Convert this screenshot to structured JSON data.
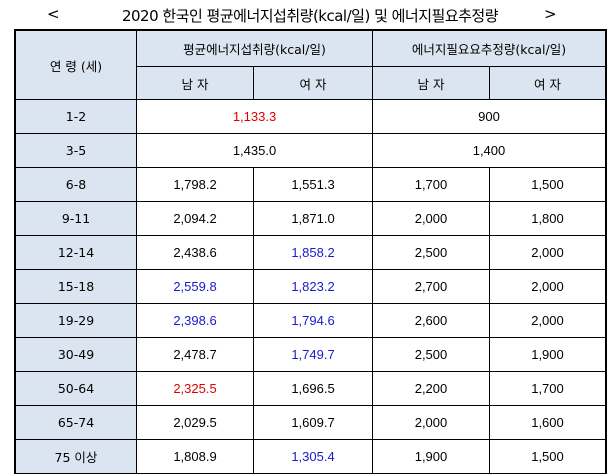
{
  "title": {
    "left_bracket": "<",
    "text": "2020 한국인 평균에너지섭취량(kcal/일) 및 에너지필요추정량",
    "right_bracket": ">"
  },
  "header": {
    "age": "연 령 (세)",
    "intake": "평균에너지섭취량(kcal/일)",
    "requirement": "에너지필요요추정량(kcal/일)",
    "male": "남 자",
    "female": "여 자"
  },
  "rows": [
    {
      "age": "1-2",
      "merged": true,
      "intake": "1,133.3",
      "intake_color": "red",
      "req": "900"
    },
    {
      "age": "3-5",
      "merged": true,
      "intake": "1,435.0",
      "intake_color": "black",
      "req": "1,400"
    },
    {
      "age": "6-8",
      "merged": false,
      "m_intake": "1,798.2",
      "m_color": "black",
      "f_intake": "1,551.3",
      "f_color": "black",
      "m_req": "1,700",
      "f_req": "1,500"
    },
    {
      "age": "9-11",
      "merged": false,
      "m_intake": "2,094.2",
      "m_color": "black",
      "f_intake": "1,871.0",
      "f_color": "black",
      "m_req": "2,000",
      "f_req": "1,800"
    },
    {
      "age": "12-14",
      "merged": false,
      "m_intake": "2,438.6",
      "m_color": "black",
      "f_intake": "1,858.2",
      "f_color": "blue",
      "m_req": "2,500",
      "f_req": "2,000"
    },
    {
      "age": "15-18",
      "merged": false,
      "m_intake": "2,559.8",
      "m_color": "blue",
      "f_intake": "1,823.2",
      "f_color": "blue",
      "m_req": "2,700",
      "f_req": "2,000"
    },
    {
      "age": "19-29",
      "merged": false,
      "m_intake": "2,398.6",
      "m_color": "blue",
      "f_intake": "1,794.6",
      "f_color": "blue",
      "m_req": "2,600",
      "f_req": "2,000"
    },
    {
      "age": "30-49",
      "merged": false,
      "m_intake": "2,478.7",
      "m_color": "black",
      "f_intake": "1,749.7",
      "f_color": "blue",
      "m_req": "2,500",
      "f_req": "1,900"
    },
    {
      "age": "50-64",
      "merged": false,
      "m_intake": "2,325.5",
      "m_color": "red",
      "f_intake": "1,696.5",
      "f_color": "black",
      "m_req": "2,200",
      "f_req": "1,700"
    },
    {
      "age": "65-74",
      "merged": false,
      "m_intake": "2,029.5",
      "m_color": "black",
      "f_intake": "1,609.7",
      "f_color": "black",
      "m_req": "2,000",
      "f_req": "1,600"
    },
    {
      "age": "75 이상",
      "merged": false,
      "m_intake": "1,808.9",
      "m_color": "black",
      "f_intake": "1,305.4",
      "f_color": "blue",
      "m_req": "1,900",
      "f_req": "1,500"
    }
  ],
  "colors": {
    "header_bg": "#dbe5f1",
    "red": "#e00000",
    "blue": "#1a1acc"
  }
}
